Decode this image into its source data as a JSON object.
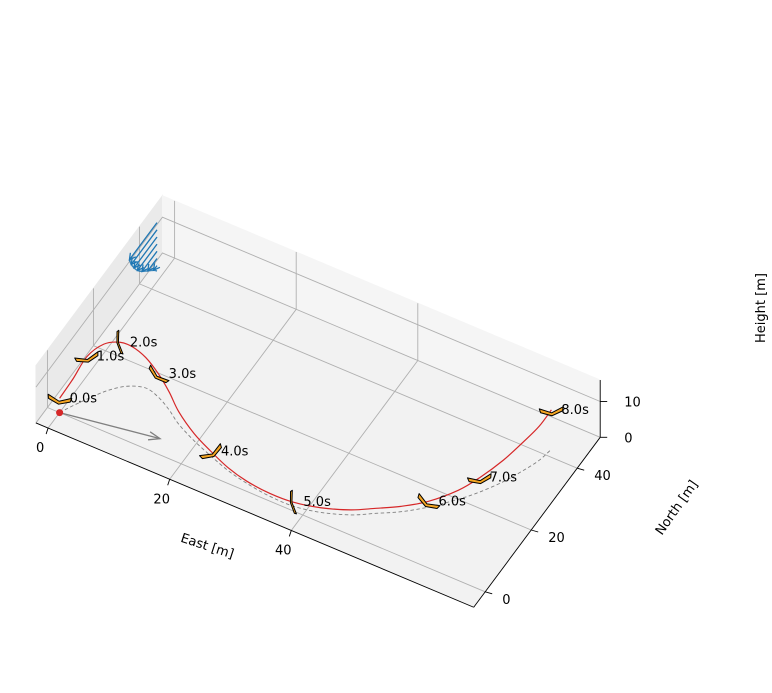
{
  "chart_data": {
    "type": "line",
    "projection": "3d",
    "axes": {
      "x": {
        "label": "East [m]",
        "ticks": [
          0,
          20,
          40
        ],
        "range": [
          -2,
          70
        ]
      },
      "y": {
        "label": "North [m]",
        "ticks": [
          0,
          20,
          40
        ],
        "range": [
          -5,
          50
        ]
      },
      "z": {
        "label": "Height [m]",
        "ticks": [
          0,
          10
        ],
        "range": [
          0,
          16
        ]
      }
    },
    "grid": true,
    "colors": {
      "trajectory": "#d62728",
      "ground_track": "#808080",
      "wind": "#1f77b4",
      "aircraft_fill": "#f5a623",
      "start_marker": "#d62728",
      "heading_arrow": "#808080"
    },
    "series": [
      {
        "kind": "trajectory",
        "points": [
          [
            0,
            0,
            4
          ],
          [
            1.2,
            2.8,
            8
          ],
          [
            2.2,
            6,
            12
          ],
          [
            3.5,
            10,
            13
          ],
          [
            5,
            13,
            12
          ],
          [
            6.5,
            14.5,
            10.5
          ],
          [
            8.5,
            15,
            8.5
          ],
          [
            11,
            14,
            6.5
          ],
          [
            13.5,
            12,
            5
          ],
          [
            16,
            9.5,
            3.5
          ],
          [
            19.5,
            7,
            2
          ],
          [
            23,
            5,
            1.3
          ],
          [
            26.5,
            3.2,
            0.8
          ],
          [
            30,
            2,
            0.6
          ],
          [
            34,
            1.2,
            0.8
          ],
          [
            38,
            1.2,
            1.1
          ],
          [
            42,
            2.5,
            1.3
          ],
          [
            46,
            5,
            1.4
          ],
          [
            49,
            8,
            1.4
          ],
          [
            52,
            11,
            1.5
          ],
          [
            55,
            15,
            1.6
          ],
          [
            58,
            20,
            2.5
          ],
          [
            60,
            24,
            4
          ],
          [
            62,
            29,
            6
          ],
          [
            63.5,
            34,
            8
          ],
          [
            64.5,
            38,
            9.5
          ],
          [
            65,
            42,
            11
          ]
        ]
      },
      {
        "kind": "ground_track",
        "points": [
          [
            0,
            0,
            0
          ],
          [
            1,
            3,
            0
          ],
          [
            2.5,
            7,
            0
          ],
          [
            4,
            10.5,
            0
          ],
          [
            6,
            13.5,
            0
          ],
          [
            8.5,
            15,
            0
          ],
          [
            11,
            14,
            0
          ],
          [
            13.5,
            12,
            0
          ],
          [
            16,
            9.5,
            0
          ],
          [
            19.5,
            7,
            0
          ],
          [
            23,
            5,
            0
          ],
          [
            26.5,
            3.2,
            0
          ],
          [
            30,
            2,
            0
          ],
          [
            34,
            1.2,
            0
          ],
          [
            38,
            1.2,
            0
          ],
          [
            42,
            2.5,
            0
          ],
          [
            46,
            5,
            0
          ],
          [
            49,
            8,
            0
          ],
          [
            52,
            11,
            0
          ],
          [
            55,
            15,
            0
          ],
          [
            58,
            20,
            0
          ],
          [
            60,
            24,
            0
          ],
          [
            62,
            29,
            0
          ],
          [
            63.5,
            34,
            0
          ],
          [
            64.5,
            38,
            0
          ],
          [
            65,
            42,
            0
          ]
        ]
      }
    ],
    "start_point": [
      0,
      0,
      0
    ],
    "heading_arrow": {
      "from": [
        0,
        0,
        0
      ],
      "to": [
        15,
        4,
        0
      ]
    },
    "wind_profile": {
      "x_east": -1,
      "y_north": 45,
      "heights": [
        1.5,
        3.5,
        5.5,
        7.5,
        9.5,
        11.5,
        13.5
      ],
      "arrow_vectors": [
        [
          0,
          -1.5
        ],
        [
          0,
          -4
        ],
        [
          0,
          -6.5
        ],
        [
          0,
          -8.5
        ],
        [
          0,
          -10
        ],
        [
          0,
          -11.2
        ],
        [
          0,
          -12
        ]
      ]
    },
    "time_markers": [
      {
        "label": "0.0s",
        "pos": [
          0,
          0,
          4
        ],
        "heading_deg": 10,
        "roll_deg": 0
      },
      {
        "label": "1.0s",
        "pos": [
          2.2,
          6,
          12
        ],
        "heading_deg": -15,
        "roll_deg": -20
      },
      {
        "label": "2.0s",
        "pos": [
          5,
          13,
          12
        ],
        "heading_deg": 80,
        "roll_deg": 60
      },
      {
        "label": "3.0s",
        "pos": [
          11,
          14,
          6.5
        ],
        "heading_deg": 40,
        "roll_deg": 30
      },
      {
        "label": "4.0s",
        "pos": [
          23,
          5,
          1.3
        ],
        "heading_deg": -30,
        "roll_deg": 5
      },
      {
        "label": "5.0s",
        "pos": [
          38,
          1.2,
          1.1
        ],
        "heading_deg": 80,
        "roll_deg": 60
      },
      {
        "label": "6.0s",
        "pos": [
          55,
          15,
          1.6
        ],
        "heading_deg": 30,
        "roll_deg": 5
      },
      {
        "label": "7.0s",
        "pos": [
          60,
          24,
          4
        ],
        "heading_deg": -10,
        "roll_deg": 5
      },
      {
        "label": "8.0s",
        "pos": [
          65,
          42,
          11
        ],
        "heading_deg": -5,
        "roll_deg": 5
      }
    ]
  }
}
